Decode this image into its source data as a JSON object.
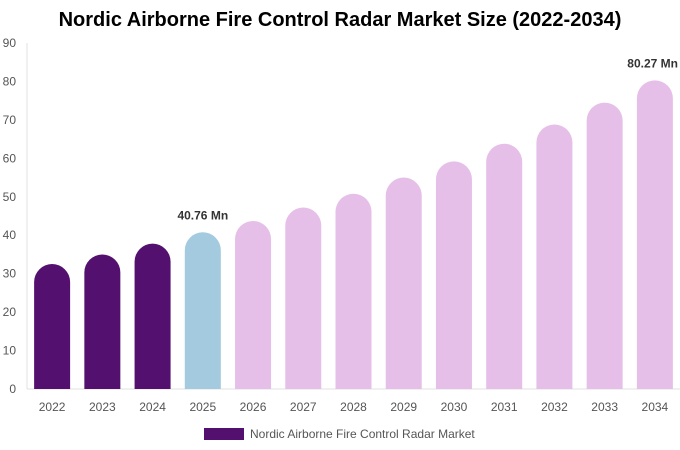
{
  "chart_data": {
    "type": "bar",
    "title": "Nordic Airborne Fire Control Radar Market Size (2022-2034)",
    "categories": [
      "2022",
      "2023",
      "2024",
      "2025",
      "2026",
      "2027",
      "2028",
      "2029",
      "2030",
      "2031",
      "2032",
      "2033",
      "2034"
    ],
    "series": [
      {
        "name": "Nordic Airborne Fire Control Radar Market",
        "values": [
          32.5,
          35.0,
          37.8,
          40.76,
          43.7,
          47.2,
          50.8,
          55.0,
          59.2,
          63.8,
          68.8,
          74.5,
          80.27
        ]
      }
    ],
    "point_colors": [
      "#54106e",
      "#54106e",
      "#54106e",
      "#a3cade",
      "#e6bfe8",
      "#e6bfe8",
      "#e6bfe8",
      "#e6bfe8",
      "#e6bfe8",
      "#e6bfe8",
      "#e6bfe8",
      "#e6bfe8",
      "#e6bfe8"
    ],
    "data_labels": [
      {
        "category": "2025",
        "text": "40.76 Mn"
      },
      {
        "category": "2034",
        "text": "80.27 Mn"
      }
    ],
    "ylim": [
      0,
      90
    ],
    "yticks": [
      0,
      10,
      20,
      30,
      40,
      50,
      60,
      70,
      80,
      90
    ],
    "xlabel": "",
    "ylabel": "",
    "grid": false,
    "legend_position": "bottom-center",
    "legend_color": "#54106e"
  }
}
